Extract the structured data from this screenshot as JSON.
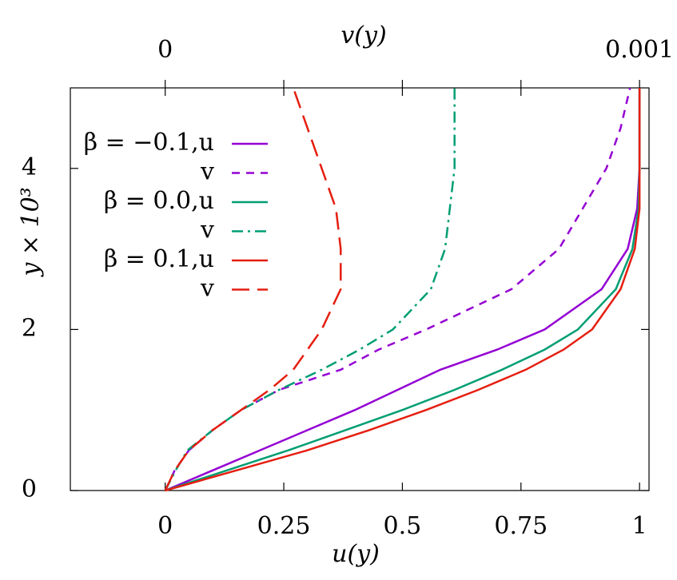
{
  "chart_data": {
    "type": "line",
    "x_label": "u(y)",
    "x2_label": "v(y)",
    "y_label": "y × 10³",
    "xlim": [
      -0.2,
      1.02
    ],
    "xticks": [
      0,
      0.25,
      0.5,
      0.75,
      1
    ],
    "x2lim": [
      -0.0002,
      0.00102
    ],
    "x2ticks": [
      0,
      0.001
    ],
    "x2minor_ticks": [
      0.00025,
      0.0005,
      0.00075
    ],
    "ylim": [
      0,
      5
    ],
    "yticks": [
      0,
      2,
      4
    ],
    "y": [
      0,
      0.25,
      0.5,
      0.75,
      1,
      1.25,
      1.5,
      1.75,
      2,
      2.5,
      3,
      3.5,
      4,
      4.5,
      5
    ],
    "series": [
      {
        "name": "β = −0.1,u",
        "color": "#9400d3",
        "dash": "solid",
        "values": [
          0,
          0.1,
          0.2,
          0.3,
          0.4,
          0.49,
          0.58,
          0.7,
          0.8,
          0.92,
          0.975,
          0.995,
          1,
          1,
          1
        ]
      },
      {
        "name": "v",
        "color": "#9400d3",
        "dash": "dashed",
        "axis": "x2",
        "values": [
          0,
          2e-05,
          5e-05,
          0.0001,
          0.00016,
          0.00024,
          0.00037,
          0.00045,
          0.00055,
          0.00073,
          0.00083,
          0.00088,
          0.00093,
          0.00096,
          0.00098
        ]
      },
      {
        "name": "β = 0.0,u",
        "color": "#009e73",
        "dash": "solid",
        "values": [
          0,
          0.13,
          0.26,
          0.38,
          0.5,
          0.61,
          0.71,
          0.8,
          0.87,
          0.95,
          0.985,
          0.998,
          1,
          1,
          1
        ]
      },
      {
        "name": "v",
        "color": "#009e73",
        "dash": "dashdot",
        "axis": "x2",
        "values": [
          0,
          2.2e-05,
          4.7e-05,
          0.0001,
          0.00016,
          0.00024,
          0.00033,
          0.00041,
          0.00048,
          0.00056,
          0.00059,
          0.0006,
          0.00061,
          0.00061,
          0.00061
        ]
      },
      {
        "name": "β = 0.1,u",
        "color": "#e51e10",
        "dash": "solid",
        "values": [
          0,
          0.15,
          0.3,
          0.43,
          0.55,
          0.66,
          0.76,
          0.84,
          0.9,
          0.96,
          0.99,
          1,
          1,
          1,
          1
        ]
      },
      {
        "name": "v",
        "color": "#e51e10",
        "dash": "longdash",
        "axis": "x2",
        "values": [
          0,
          2e-05,
          5e-05,
          0.0001,
          0.00016,
          0.00022,
          0.00027,
          0.0003,
          0.00033,
          0.00037,
          0.00037,
          0.00036,
          0.00033,
          0.0003,
          0.00027
        ]
      }
    ]
  }
}
